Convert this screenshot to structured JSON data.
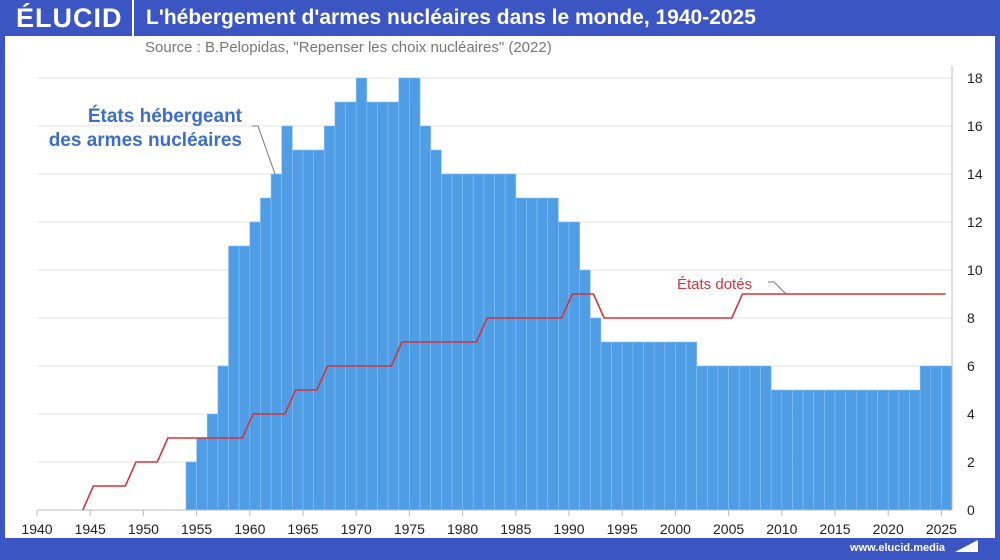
{
  "header": {
    "logo": "ÉLUCID",
    "title": "L'hébergement d'armes nucléaires dans le monde, 1940-2025"
  },
  "source": "Source : B.Pelopidas, \"Repenser les choix nucléaires\" (2022)",
  "footer": {
    "url": "www.elucid.media"
  },
  "colors": {
    "brand": "#3b55c2",
    "bars": "#4f9de4",
    "line": "#d6343a",
    "label_blue": "#3b6fc9"
  },
  "chart_data": {
    "type": "bar",
    "title": "L'hébergement d'armes nucléaires dans le monde, 1940-2025",
    "xlim": [
      1940,
      2026
    ],
    "ylim": [
      0,
      18
    ],
    "x_ticks": [
      1940,
      1945,
      1950,
      1955,
      1960,
      1965,
      1970,
      1975,
      1980,
      1985,
      1990,
      1995,
      2000,
      2005,
      2010,
      2015,
      2020,
      2025
    ],
    "y_ticks": [
      0,
      2,
      4,
      6,
      8,
      10,
      12,
      14,
      16,
      18
    ],
    "y_axis_side": "right",
    "grid": true,
    "series": [
      {
        "name": "États hébergeant des armes nucléaires",
        "type": "bar",
        "label_lines": [
          "États hébergeant",
          "des armes nucléaires"
        ],
        "x": [
          1954,
          1955,
          1956,
          1957,
          1958,
          1959,
          1960,
          1961,
          1962,
          1963,
          1964,
          1965,
          1966,
          1967,
          1968,
          1969,
          1970,
          1971,
          1972,
          1973,
          1974,
          1975,
          1976,
          1977,
          1978,
          1979,
          1980,
          1981,
          1982,
          1983,
          1984,
          1985,
          1986,
          1987,
          1988,
          1989,
          1990,
          1991,
          1992,
          1993,
          1994,
          1995,
          1996,
          1997,
          1998,
          1999,
          2000,
          2001,
          2002,
          2003,
          2004,
          2005,
          2006,
          2007,
          2008,
          2009,
          2010,
          2011,
          2012,
          2013,
          2014,
          2015,
          2016,
          2017,
          2018,
          2019,
          2020,
          2021,
          2022,
          2023,
          2024,
          2025
        ],
        "values": [
          2,
          3,
          4,
          6,
          11,
          11,
          12,
          13,
          14,
          16,
          15,
          15,
          15,
          16,
          17,
          17,
          18,
          17,
          17,
          17,
          18,
          18,
          16,
          15,
          14,
          14,
          14,
          14,
          14,
          14,
          14,
          13,
          13,
          13,
          13,
          12,
          12,
          10,
          8,
          7,
          7,
          7,
          7,
          7,
          7,
          7,
          7,
          7,
          6,
          6,
          6,
          6,
          6,
          6,
          6,
          5,
          5,
          5,
          5,
          5,
          5,
          5,
          5,
          5,
          5,
          5,
          5,
          5,
          5,
          6,
          6,
          6
        ]
      },
      {
        "name": "États dotés",
        "type": "line",
        "x": [
          1944,
          1945,
          1949,
          1952,
          1960,
          1964,
          1967,
          1974,
          1982,
          1990,
          1993,
          2006,
          2025
        ],
        "values": [
          0,
          1,
          2,
          3,
          4,
          5,
          6,
          7,
          8,
          9,
          8,
          9,
          9
        ]
      }
    ]
  }
}
